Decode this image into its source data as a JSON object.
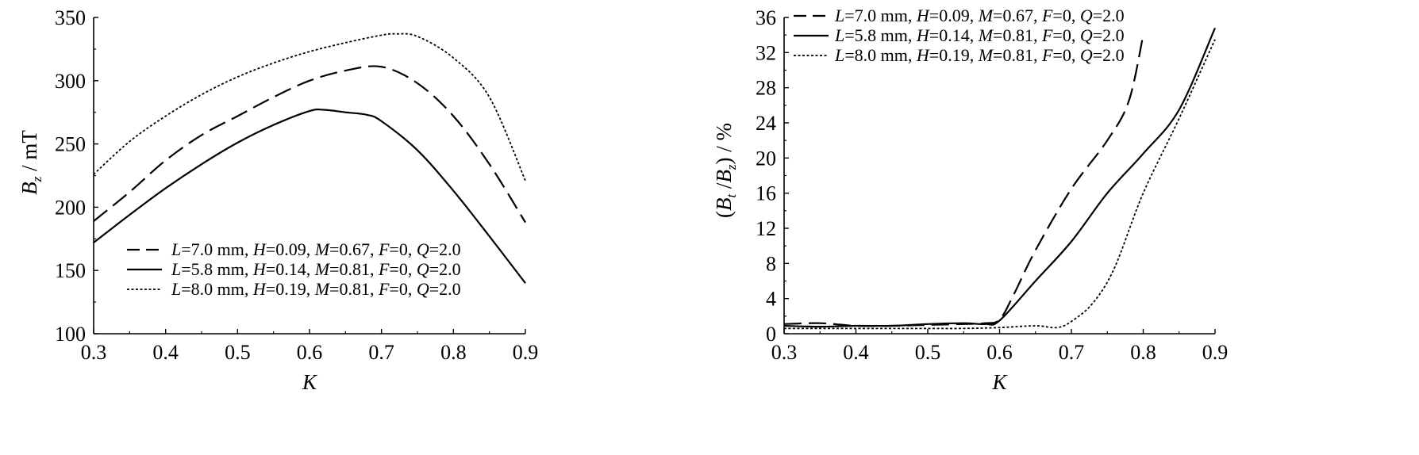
{
  "chart_data": [
    {
      "type": "line",
      "xlabel": "K",
      "ylabel": "B_z / mT",
      "xlim": [
        0.3,
        0.9
      ],
      "ylim": [
        100,
        350
      ],
      "xticks": [
        "0.3",
        "0.4",
        "0.5",
        "0.6",
        "0.7",
        "0.8",
        "0.9"
      ],
      "yticks": [
        "100",
        "150",
        "200",
        "250",
        "300",
        "350"
      ],
      "grid": false,
      "legend_position": "bottom-left",
      "series": [
        {
          "name": "L=7.0 mm, H=0.09, M=0.67, F=0, Q=2.0",
          "style": "dashed",
          "x": [
            0.3,
            0.35,
            0.4,
            0.45,
            0.5,
            0.55,
            0.6,
            0.65,
            0.7,
            0.75,
            0.8,
            0.85,
            0.9
          ],
          "y": [
            189,
            212,
            237,
            257,
            272,
            287,
            300,
            308,
            311,
            298,
            272,
            234,
            188
          ]
        },
        {
          "name": "L=5.8 mm, H=0.14, M=0.81, F=0, Q=2.0",
          "style": "solid",
          "x": [
            0.3,
            0.35,
            0.4,
            0.45,
            0.5,
            0.55,
            0.6,
            0.62,
            0.65,
            0.68,
            0.7,
            0.75,
            0.8,
            0.85,
            0.9
          ],
          "y": [
            172,
            194,
            215,
            234,
            251,
            265,
            276,
            277,
            275,
            273,
            268,
            245,
            213,
            177,
            140
          ]
        },
        {
          "name": "L=8.0 mm, H=0.19, M=0.81, F=0, Q=2.0",
          "style": "dotted",
          "x": [
            0.3,
            0.35,
            0.4,
            0.45,
            0.5,
            0.55,
            0.6,
            0.65,
            0.7,
            0.72,
            0.75,
            0.8,
            0.85,
            0.9
          ],
          "y": [
            226,
            252,
            272,
            289,
            303,
            314,
            323,
            330,
            336,
            337,
            335,
            318,
            287,
            221
          ]
        }
      ]
    },
    {
      "type": "line",
      "xlabel": "K",
      "ylabel": "(B_t / B_z) / %",
      "xlim": [
        0.3,
        0.9
      ],
      "ylim": [
        0,
        36
      ],
      "xticks": [
        "0.3",
        "0.4",
        "0.5",
        "0.6",
        "0.7",
        "0.8",
        "0.9"
      ],
      "yticks": [
        "0",
        "4",
        "8",
        "12",
        "16",
        "20",
        "24",
        "28",
        "32",
        "36"
      ],
      "grid": false,
      "legend_position": "top-left",
      "series": [
        {
          "name": "L=7.0 mm, H=0.09, M=0.67, F=0, Q=2.0",
          "style": "dashed",
          "x": [
            0.3,
            0.35,
            0.4,
            0.45,
            0.5,
            0.55,
            0.58,
            0.6,
            0.62,
            0.65,
            0.7,
            0.75,
            0.78,
            0.8
          ],
          "y": [
            1.1,
            1.2,
            0.9,
            0.9,
            1.0,
            1.1,
            1.2,
            1.6,
            4.5,
            9.5,
            16.5,
            22.0,
            26.5,
            34.0
          ]
        },
        {
          "name": "L=5.8 mm, H=0.14, M=0.81, F=0, Q=2.0",
          "style": "solid",
          "x": [
            0.3,
            0.35,
            0.4,
            0.45,
            0.5,
            0.55,
            0.58,
            0.6,
            0.65,
            0.7,
            0.75,
            0.8,
            0.85,
            0.9
          ],
          "y": [
            0.9,
            0.8,
            0.9,
            0.9,
            1.1,
            1.2,
            1.1,
            1.5,
            6.0,
            10.5,
            16.0,
            20.5,
            25.5,
            34.8
          ]
        },
        {
          "name": "L=8.0 mm, H=0.19, M=0.81, F=0, Q=2.0",
          "style": "dotted",
          "x": [
            0.3,
            0.35,
            0.4,
            0.45,
            0.5,
            0.55,
            0.6,
            0.65,
            0.68,
            0.7,
            0.73,
            0.76,
            0.8,
            0.85,
            0.9
          ],
          "y": [
            0.6,
            0.6,
            0.6,
            0.6,
            0.6,
            0.6,
            0.7,
            0.9,
            0.7,
            1.4,
            3.5,
            7.5,
            16.0,
            24.5,
            33.5
          ]
        }
      ]
    }
  ]
}
